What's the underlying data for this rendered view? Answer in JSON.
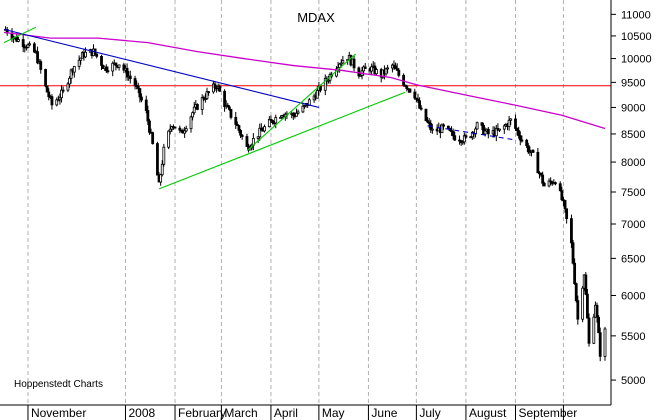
{
  "chart_data": {
    "type": "candlestick",
    "title": "MDAX",
    "credit": "Hoppenstedt Charts",
    "y_scale": "log",
    "ylim": [
      4800,
      11200
    ],
    "y_ticks": [
      5000,
      5500,
      6000,
      6500,
      7000,
      7500,
      8000,
      8500,
      9000,
      9500,
      10000,
      10500,
      11000
    ],
    "y_tick_labels": [
      "5000",
      "5500",
      "6000",
      "6500",
      "7000",
      "7500",
      "8000",
      "8500",
      "9000",
      "9500",
      "10000",
      "10500",
      "11000"
    ],
    "x_period": {
      "start": "2007-10-17",
      "end": "2008-10-27"
    },
    "month_labels": [
      {
        "label": "November",
        "date": "2007-11-01"
      },
      {
        "label": "2008",
        "date": "2008-01-01"
      },
      {
        "label": "February",
        "date": "2008-02-01"
      },
      {
        "label": "March",
        "date": "2008-03-01"
      },
      {
        "label": "April",
        "date": "2008-04-01"
      },
      {
        "label": "May",
        "date": "2008-05-01"
      },
      {
        "label": "June",
        "date": "2008-06-01"
      },
      {
        "label": "July",
        "date": "2008-07-01"
      },
      {
        "label": "August",
        "date": "2008-08-01"
      },
      {
        "label": "September",
        "date": "2008-09-01"
      },
      {
        "label": "",
        "date": "2008-10-01"
      }
    ],
    "grid": "vertical-dashed",
    "price_path": [
      [
        "2007-10-18",
        10650
      ],
      [
        "2007-10-24",
        10450
      ],
      [
        "2007-10-31",
        10300
      ],
      [
        "2007-11-06",
        10100
      ],
      [
        "2007-11-12",
        9400
      ],
      [
        "2007-11-16",
        9050
      ],
      [
        "2007-11-23",
        9300
      ],
      [
        "2007-11-29",
        9800
      ],
      [
        "2007-12-06",
        10100
      ],
      [
        "2007-12-12",
        10150
      ],
      [
        "2007-12-19",
        9800
      ],
      [
        "2007-12-28",
        9900
      ],
      [
        "2008-01-07",
        9450
      ],
      [
        "2008-01-14",
        8900
      ],
      [
        "2008-01-18",
        8300
      ],
      [
        "2008-01-22",
        7600
      ],
      [
        "2008-01-25",
        8200
      ],
      [
        "2008-01-30",
        8700
      ],
      [
        "2008-02-05",
        8500
      ],
      [
        "2008-02-12",
        8900
      ],
      [
        "2008-02-19",
        9200
      ],
      [
        "2008-02-27",
        9450
      ],
      [
        "2008-03-04",
        9000
      ],
      [
        "2008-03-10",
        8700
      ],
      [
        "2008-03-17",
        8250
      ],
      [
        "2008-03-24",
        8500
      ],
      [
        "2008-03-31",
        8700
      ],
      [
        "2008-04-08",
        8900
      ],
      [
        "2008-04-15",
        8850
      ],
      [
        "2008-04-22",
        9000
      ],
      [
        "2008-04-30",
        9300
      ],
      [
        "2008-05-07",
        9600
      ],
      [
        "2008-05-13",
        9900
      ],
      [
        "2008-05-19",
        10050
      ],
      [
        "2008-05-26",
        9700
      ],
      [
        "2008-06-02",
        9800
      ],
      [
        "2008-06-09",
        9650
      ],
      [
        "2008-06-16",
        9850
      ],
      [
        "2008-06-23",
        9500
      ],
      [
        "2008-06-30",
        9250
      ],
      [
        "2008-07-04",
        8900
      ],
      [
        "2008-07-11",
        8550
      ],
      [
        "2008-07-18",
        8600
      ],
      [
        "2008-07-25",
        8450
      ],
      [
        "2008-08-01",
        8400
      ],
      [
        "2008-08-08",
        8650
      ],
      [
        "2008-08-15",
        8500
      ],
      [
        "2008-08-22",
        8550
      ],
      [
        "2008-08-29",
        8750
      ],
      [
        "2008-09-05",
        8400
      ],
      [
        "2008-09-12",
        8100
      ],
      [
        "2008-09-19",
        7600
      ],
      [
        "2008-09-26",
        7700
      ],
      [
        "2008-10-01",
        7300
      ],
      [
        "2008-10-06",
        6700
      ],
      [
        "2008-10-10",
        5700
      ],
      [
        "2008-10-14",
        6300
      ],
      [
        "2008-10-17",
        5400
      ],
      [
        "2008-10-21",
        5900
      ],
      [
        "2008-10-24",
        5300
      ],
      [
        "2008-10-27",
        5550
      ]
    ],
    "moving_average": {
      "color": "#cc00cc",
      "points": [
        [
          "2007-10-17",
          10580
        ],
        [
          "2007-11-15",
          10450
        ],
        [
          "2007-12-15",
          10450
        ],
        [
          "2008-01-15",
          10350
        ],
        [
          "2008-02-15",
          10150
        ],
        [
          "2008-03-15",
          10000
        ],
        [
          "2008-04-15",
          9850
        ],
        [
          "2008-05-15",
          9750
        ],
        [
          "2008-06-15",
          9600
        ],
        [
          "2008-07-01",
          9450
        ],
        [
          "2008-07-31",
          9250
        ],
        [
          "2008-08-31",
          9050
        ],
        [
          "2008-09-30",
          8850
        ],
        [
          "2008-10-27",
          8600
        ]
      ]
    },
    "horizontal_line": {
      "value": 9430,
      "color": "#ff0000"
    },
    "trendlines": [
      {
        "color": "#0000cc",
        "style": "solid",
        "points": [
          [
            "2007-10-17",
            10650
          ],
          [
            "2008-05-01",
            9000
          ]
        ]
      },
      {
        "color": "#00cc00",
        "style": "solid",
        "points": [
          [
            "2007-10-17",
            10350
          ],
          [
            "2007-11-06",
            10700
          ]
        ]
      },
      {
        "color": "#00cc00",
        "style": "solid",
        "points": [
          [
            "2008-01-22",
            7550
          ],
          [
            "2008-06-24",
            9300
          ]
        ]
      },
      {
        "color": "#00cc00",
        "style": "solid",
        "points": [
          [
            "2008-03-17",
            8200
          ],
          [
            "2008-05-24",
            10100
          ]
        ]
      },
      {
        "color": "#0000cc",
        "style": "dashed",
        "points": [
          [
            "2008-07-08",
            8650
          ],
          [
            "2008-08-30",
            8400
          ]
        ]
      }
    ]
  }
}
